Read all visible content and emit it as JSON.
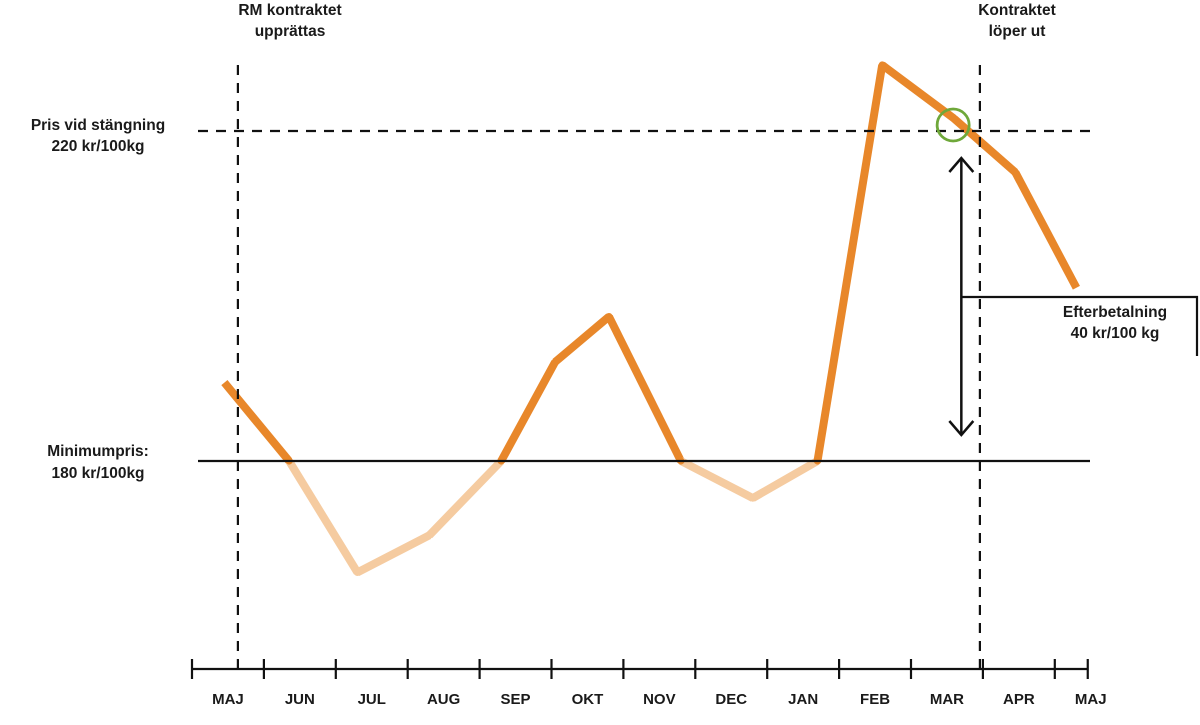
{
  "chart_data": {
    "type": "line",
    "categories": [
      "MAJ",
      "JUN",
      "JUL",
      "AUG",
      "SEP",
      "OKT",
      "NOV",
      "DEC",
      "JAN",
      "FEB",
      "MAR",
      "APR",
      "MAJ"
    ],
    "minimum_price": {
      "value": 180,
      "label_lines": [
        "Minimumpris:",
        "180 kr/100kg"
      ]
    },
    "closing_price": {
      "value": 220,
      "label_lines": [
        "Pris vid stängning",
        "220 kr/100kg"
      ]
    },
    "contract_start": {
      "month_index": 1,
      "label_lines": [
        "RM kontraktet",
        "upprättas"
      ]
    },
    "contract_end": {
      "month_index": 11,
      "label_lines": [
        "Kontraktet",
        "löper ut"
      ]
    },
    "aftpayment": {
      "value": 40,
      "label_lines": [
        "Efterbetalning",
        "40 kr/100 kg"
      ]
    },
    "series": [
      {
        "points": [
          [
            0.45,
            189.5
          ],
          [
            1.35,
            180
          ],
          [
            2.3,
            166.5
          ],
          [
            3.3,
            171
          ],
          [
            4.3,
            180
          ],
          [
            5.05,
            192
          ],
          [
            5.8,
            197.5
          ],
          [
            6.8,
            180
          ],
          [
            7.8,
            175.5
          ],
          [
            8.7,
            180
          ],
          [
            9.6,
            228
          ],
          [
            10.6,
            221.5
          ],
          [
            11.45,
            215
          ],
          [
            12.3,
            201
          ]
        ]
      }
    ],
    "colors": {
      "above_minimum": "#e8872a",
      "below_minimum": "#f5cba0",
      "marker": "#6fa83a",
      "lines": "#111111"
    },
    "grid": false
  }
}
